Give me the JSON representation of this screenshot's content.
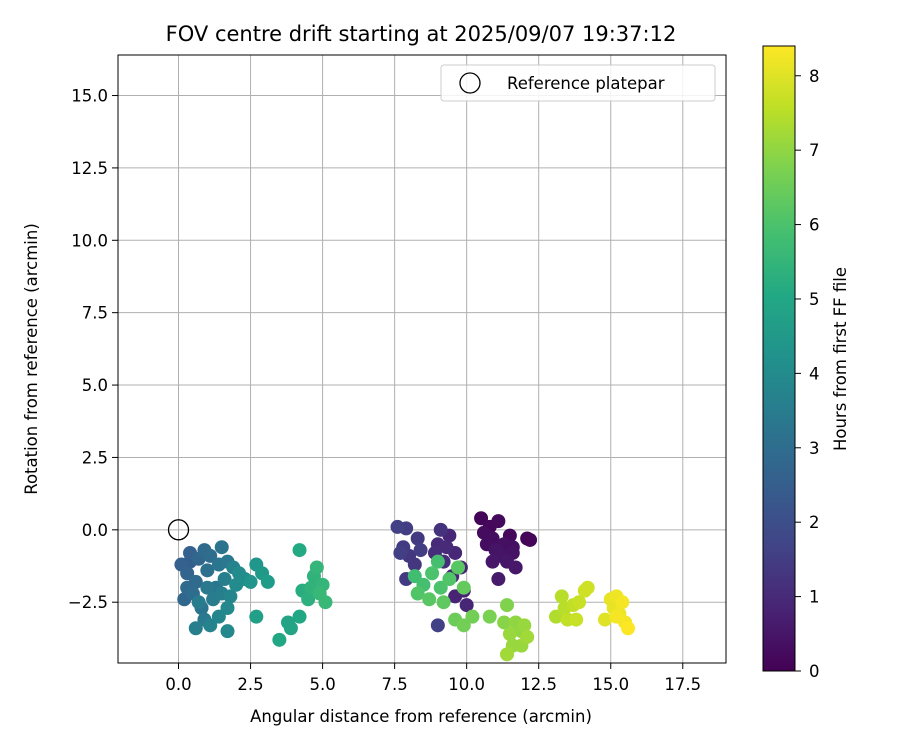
{
  "chart_data": {
    "type": "scatter",
    "title": "FOV centre drift starting at 2025/09/07 19:37:12",
    "xlabel": "Angular distance from reference (arcmin)",
    "ylabel": "Rotation from reference (arcmin)",
    "xlim": [
      -2.1,
      19.0
    ],
    "ylim": [
      -4.6,
      16.4
    ],
    "x_ticks": [
      0.0,
      2.5,
      5.0,
      7.5,
      10.0,
      12.5,
      15.0,
      17.5
    ],
    "x_tick_labels": [
      "0.0",
      "2.5",
      "5.0",
      "7.5",
      "10.0",
      "12.5",
      "15.0",
      "17.5"
    ],
    "y_ticks": [
      -2.5,
      0.0,
      2.5,
      5.0,
      7.5,
      10.0,
      12.5,
      15.0
    ],
    "y_tick_labels": [
      "−2.5",
      "0.0",
      "2.5",
      "5.0",
      "7.5",
      "10.0",
      "12.5",
      "15.0"
    ],
    "grid": true,
    "legend": {
      "position": "top-right",
      "label": "Reference platepar"
    },
    "reference_point": {
      "x": 0.0,
      "y": 0.0
    },
    "colorbar": {
      "label": "Hours from first FF file",
      "range": [
        0,
        8.4
      ],
      "ticks": [
        0,
        1,
        2,
        3,
        4,
        5,
        6,
        7,
        8
      ],
      "colormap": "viridis"
    },
    "series": [
      {
        "points": [
          {
            "x": 10.5,
            "y": 0.4,
            "h": 0.1
          },
          {
            "x": 10.8,
            "y": 0.1,
            "h": 0.15
          },
          {
            "x": 11.1,
            "y": 0.3,
            "h": 0.2
          },
          {
            "x": 10.6,
            "y": -0.1,
            "h": 0.25
          },
          {
            "x": 10.9,
            "y": -0.3,
            "h": 0.3
          },
          {
            "x": 11.3,
            "y": -0.5,
            "h": 0.35
          },
          {
            "x": 11.6,
            "y": -0.8,
            "h": 0.4
          },
          {
            "x": 11.0,
            "y": -0.7,
            "h": 0.45
          },
          {
            "x": 11.4,
            "y": -1.1,
            "h": 0.5
          },
          {
            "x": 12.1,
            "y": -0.3,
            "h": 0.1
          },
          {
            "x": 12.2,
            "y": -0.35,
            "h": 0.12
          },
          {
            "x": 11.7,
            "y": -1.3,
            "h": 0.55
          },
          {
            "x": 11.1,
            "y": -1.7,
            "h": 0.6
          },
          {
            "x": 10.7,
            "y": -0.5,
            "h": 0.3
          },
          {
            "x": 11.5,
            "y": -0.2,
            "h": 0.2
          },
          {
            "x": 11.2,
            "y": -0.9,
            "h": 0.45
          },
          {
            "x": 10.9,
            "y": -1.1,
            "h": 0.5
          },
          {
            "x": 11.6,
            "y": -0.6,
            "h": 0.35
          },
          {
            "x": 9.4,
            "y": -0.2,
            "h": 0.9
          },
          {
            "x": 9.0,
            "y": -0.5,
            "h": 1.0
          },
          {
            "x": 9.6,
            "y": -0.8,
            "h": 0.95
          },
          {
            "x": 9.2,
            "y": -1.1,
            "h": 1.05
          },
          {
            "x": 9.8,
            "y": -1.3,
            "h": 0.85
          },
          {
            "x": 9.5,
            "y": -1.6,
            "h": 0.9
          },
          {
            "x": 9.9,
            "y": -2.1,
            "h": 0.8
          },
          {
            "x": 9.6,
            "y": -2.3,
            "h": 0.85
          },
          {
            "x": 10.0,
            "y": -2.6,
            "h": 0.9
          },
          {
            "x": 8.9,
            "y": -0.8,
            "h": 1.1
          },
          {
            "x": 9.1,
            "y": -0.0,
            "h": 1.2
          },
          {
            "x": 9.3,
            "y": -0.6,
            "h": 1.0
          },
          {
            "x": 9.0,
            "y": -3.3,
            "h": 1.6
          },
          {
            "x": 7.6,
            "y": 0.1,
            "h": 1.6
          },
          {
            "x": 7.9,
            "y": 0.05,
            "h": 1.5
          },
          {
            "x": 8.3,
            "y": -0.3,
            "h": 1.4
          },
          {
            "x": 7.8,
            "y": -0.6,
            "h": 1.45
          },
          {
            "x": 8.0,
            "y": -0.9,
            "h": 1.35
          },
          {
            "x": 8.4,
            "y": -0.7,
            "h": 1.5
          },
          {
            "x": 7.7,
            "y": -0.8,
            "h": 1.55
          },
          {
            "x": 7.9,
            "y": -1.7,
            "h": 1.4
          },
          {
            "x": 8.2,
            "y": -1.2,
            "h": 1.3
          }
        ]
      },
      {
        "points": [
          {
            "x": 0.4,
            "y": -0.8,
            "h": 2.6
          },
          {
            "x": 0.7,
            "y": -1.0,
            "h": 2.8
          },
          {
            "x": 1.1,
            "y": -0.9,
            "h": 3.0
          },
          {
            "x": 1.5,
            "y": -0.6,
            "h": 3.2
          },
          {
            "x": 0.3,
            "y": -1.5,
            "h": 2.7
          },
          {
            "x": 0.6,
            "y": -1.8,
            "h": 2.9
          },
          {
            "x": 1.0,
            "y": -1.4,
            "h": 3.1
          },
          {
            "x": 1.3,
            "y": -2.0,
            "h": 3.3
          },
          {
            "x": 1.7,
            "y": -1.1,
            "h": 3.4
          },
          {
            "x": 0.2,
            "y": -2.4,
            "h": 2.8
          },
          {
            "x": 0.5,
            "y": -2.2,
            "h": 3.0
          },
          {
            "x": 0.8,
            "y": -2.7,
            "h": 3.2
          },
          {
            "x": 1.2,
            "y": -2.4,
            "h": 3.5
          },
          {
            "x": 1.6,
            "y": -1.7,
            "h": 3.6
          },
          {
            "x": 1.9,
            "y": -1.3,
            "h": 3.7
          },
          {
            "x": 0.1,
            "y": -1.2,
            "h": 2.6
          },
          {
            "x": 0.9,
            "y": -3.1,
            "h": 3.4
          },
          {
            "x": 1.4,
            "y": -3.0,
            "h": 3.8
          },
          {
            "x": 1.7,
            "y": -2.7,
            "h": 3.9
          },
          {
            "x": 0.6,
            "y": -3.4,
            "h": 3.6
          },
          {
            "x": 1.1,
            "y": -3.3,
            "h": 3.7
          },
          {
            "x": 1.7,
            "y": -3.5,
            "h": 3.9
          },
          {
            "x": 2.0,
            "y": -1.9,
            "h": 4.0
          },
          {
            "x": 2.3,
            "y": -1.7,
            "h": 4.1
          },
          {
            "x": 0.4,
            "y": -1.1,
            "h": 2.5
          },
          {
            "x": 0.9,
            "y": -0.7,
            "h": 2.9
          },
          {
            "x": 1.4,
            "y": -1.2,
            "h": 3.3
          },
          {
            "x": 1.0,
            "y": -2.0,
            "h": 3.4
          },
          {
            "x": 0.7,
            "y": -2.5,
            "h": 3.5
          },
          {
            "x": 1.5,
            "y": -2.2,
            "h": 3.6
          },
          {
            "x": 0.3,
            "y": -2.0,
            "h": 2.9
          },
          {
            "x": 1.8,
            "y": -2.3,
            "h": 3.8
          },
          {
            "x": 2.1,
            "y": -1.5,
            "h": 4.0
          }
        ]
      },
      {
        "points": [
          {
            "x": 2.5,
            "y": -1.8,
            "h": 4.3
          },
          {
            "x": 2.7,
            "y": -1.2,
            "h": 4.4
          },
          {
            "x": 2.9,
            "y": -1.5,
            "h": 4.5
          },
          {
            "x": 3.1,
            "y": -1.8,
            "h": 4.6
          },
          {
            "x": 2.7,
            "y": -3.0,
            "h": 4.7
          },
          {
            "x": 3.8,
            "y": -3.2,
            "h": 4.9
          },
          {
            "x": 3.9,
            "y": -3.4,
            "h": 4.9
          },
          {
            "x": 3.5,
            "y": -3.8,
            "h": 5.0
          },
          {
            "x": 4.2,
            "y": -3.0,
            "h": 5.0
          },
          {
            "x": 4.2,
            "y": -0.7,
            "h": 5.1
          },
          {
            "x": 4.3,
            "y": -2.1,
            "h": 5.2
          },
          {
            "x": 4.5,
            "y": -2.4,
            "h": 5.3
          },
          {
            "x": 4.7,
            "y": -1.6,
            "h": 5.4
          },
          {
            "x": 4.8,
            "y": -1.3,
            "h": 5.5
          },
          {
            "x": 5.0,
            "y": -1.9,
            "h": 5.5
          },
          {
            "x": 4.9,
            "y": -2.2,
            "h": 5.6
          },
          {
            "x": 5.1,
            "y": -2.5,
            "h": 5.6
          },
          {
            "x": 4.6,
            "y": -2.0,
            "h": 5.4
          }
        ]
      },
      {
        "points": [
          {
            "x": 8.2,
            "y": -1.6,
            "h": 5.8
          },
          {
            "x": 8.5,
            "y": -1.9,
            "h": 5.9
          },
          {
            "x": 8.8,
            "y": -1.5,
            "h": 6.0
          },
          {
            "x": 8.3,
            "y": -2.2,
            "h": 6.1
          },
          {
            "x": 8.7,
            "y": -2.4,
            "h": 6.2
          },
          {
            "x": 9.1,
            "y": -2.0,
            "h": 6.0
          },
          {
            "x": 9.0,
            "y": -1.1,
            "h": 5.9
          },
          {
            "x": 9.4,
            "y": -1.7,
            "h": 6.1
          },
          {
            "x": 9.2,
            "y": -2.5,
            "h": 6.3
          },
          {
            "x": 9.7,
            "y": -1.3,
            "h": 6.2
          },
          {
            "x": 9.9,
            "y": -2.0,
            "h": 6.4
          },
          {
            "x": 9.6,
            "y": -3.1,
            "h": 6.5
          },
          {
            "x": 9.9,
            "y": -3.3,
            "h": 6.6
          },
          {
            "x": 10.2,
            "y": -3.0,
            "h": 6.6
          },
          {
            "x": 10.8,
            "y": -3.0,
            "h": 6.7
          }
        ]
      },
      {
        "points": [
          {
            "x": 11.4,
            "y": -2.6,
            "h": 6.8
          },
          {
            "x": 11.3,
            "y": -3.2,
            "h": 6.9
          },
          {
            "x": 11.7,
            "y": -3.2,
            "h": 7.0
          },
          {
            "x": 11.9,
            "y": -3.5,
            "h": 7.0
          },
          {
            "x": 11.5,
            "y": -3.6,
            "h": 7.1
          },
          {
            "x": 12.0,
            "y": -3.3,
            "h": 7.1
          },
          {
            "x": 11.6,
            "y": -4.0,
            "h": 7.1
          },
          {
            "x": 11.9,
            "y": -4.0,
            "h": 7.1
          },
          {
            "x": 11.4,
            "y": -4.3,
            "h": 7.2
          },
          {
            "x": 12.1,
            "y": -3.7,
            "h": 7.2
          }
        ]
      },
      {
        "points": [
          {
            "x": 13.1,
            "y": -3.0,
            "h": 7.4
          },
          {
            "x": 13.3,
            "y": -2.3,
            "h": 7.5
          },
          {
            "x": 13.4,
            "y": -2.7,
            "h": 7.5
          },
          {
            "x": 13.5,
            "y": -3.1,
            "h": 7.6
          },
          {
            "x": 13.7,
            "y": -2.6,
            "h": 7.6
          },
          {
            "x": 13.8,
            "y": -3.1,
            "h": 7.7
          },
          {
            "x": 13.9,
            "y": -2.5,
            "h": 7.7
          },
          {
            "x": 14.1,
            "y": -2.1,
            "h": 7.8
          },
          {
            "x": 14.2,
            "y": -2.0,
            "h": 7.8
          },
          {
            "x": 14.8,
            "y": -3.1,
            "h": 8.0
          },
          {
            "x": 15.0,
            "y": -2.4,
            "h": 8.1
          },
          {
            "x": 15.1,
            "y": -2.7,
            "h": 8.1
          },
          {
            "x": 15.2,
            "y": -2.3,
            "h": 8.2
          },
          {
            "x": 15.3,
            "y": -2.9,
            "h": 8.2
          },
          {
            "x": 15.4,
            "y": -2.5,
            "h": 8.3
          },
          {
            "x": 15.5,
            "y": -3.2,
            "h": 8.3
          },
          {
            "x": 15.6,
            "y": -3.4,
            "h": 8.4
          },
          {
            "x": 15.2,
            "y": -3.0,
            "h": 8.3
          }
        ]
      }
    ]
  }
}
